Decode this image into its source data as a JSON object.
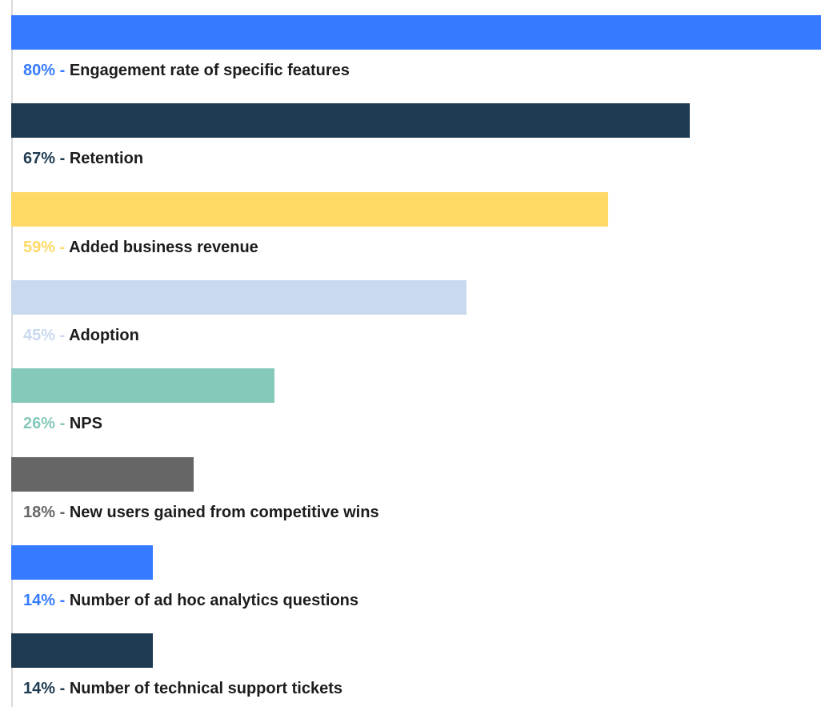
{
  "chart_data": {
    "type": "bar",
    "orientation": "horizontal",
    "max_value": 80,
    "categories": [
      "Engagement rate of specific features",
      "Retention",
      "Added business revenue",
      "Adoption",
      "NPS",
      "New users gained from competitive wins",
      "Number of ad hoc analytics questions",
      "Number of technical support tickets"
    ],
    "values": [
      80,
      67,
      59,
      45,
      26,
      18,
      14,
      14
    ],
    "value_labels": [
      "80% -",
      "67% -",
      "59% -",
      "45% -",
      "26% -",
      "18% -",
      "14% -",
      "14% -"
    ],
    "colors": [
      "#367bff",
      "#1f3b51",
      "#ffd966",
      "#c9d9ef",
      "#85c9bb",
      "#666666",
      "#367bff",
      "#1f3b51"
    ],
    "title": "",
    "xlabel": "",
    "ylabel": "",
    "grid": false,
    "legend": "none"
  }
}
